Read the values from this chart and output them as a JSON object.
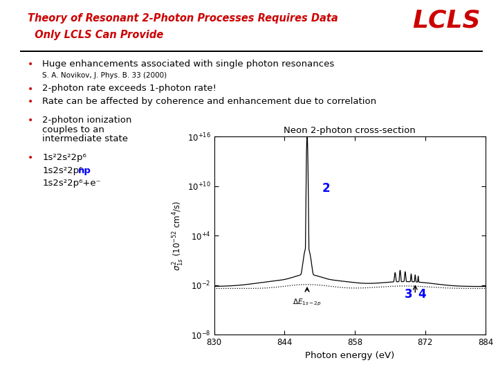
{
  "title_line1": "Theory of Resonant 2-Photon Processes Requires Data",
  "title_line2": "  Only LCLS Can Provide",
  "lcls_text": "LCLS",
  "title_color": "#CC0000",
  "bg_color": "#FFFFFF",
  "sub_bullet": "S. A. Novikov, J. Phys. B. 33 (2000)",
  "plot_title": "Neon 2-photon cross-section",
  "xlabel": "Photon energy (eV)",
  "xlim": [
    830,
    884
  ],
  "ylim_exp_min": -8,
  "ylim_exp_max": 16,
  "yticks_exp": [
    -8,
    -2,
    4,
    10,
    16
  ],
  "ytick_labels": [
    "10-8",
    "10-2",
    "10+4",
    "10+10",
    "10+16"
  ],
  "xticks": [
    830,
    844,
    858,
    872,
    884
  ]
}
